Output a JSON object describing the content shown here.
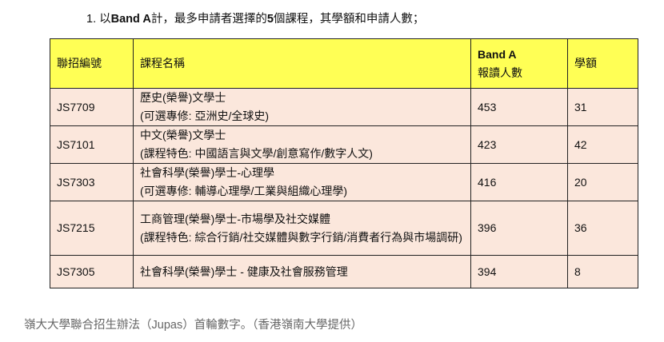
{
  "title": {
    "prefix": "1. 以",
    "bold1": "Band A",
    "mid": "計，最多申請者選擇的",
    "bold2": "5",
    "suffix": "個課程，其學額和申請人數；"
  },
  "table": {
    "headers": [
      "聯招編號",
      "課程名稱",
      "Band A",
      "報讀人數",
      "學額"
    ],
    "rows": [
      {
        "code": "JS7709",
        "name": "歷史(榮譽)文學士",
        "detail": "(可選專修: 亞洲史/全球史)",
        "applicants": "453",
        "places": "31"
      },
      {
        "code": "JS7101",
        "name": "中文(榮譽)文學士",
        "detail": "(課程特色: 中國語言與文學/創意寫作/數字人文)",
        "applicants": "423",
        "places": "42"
      },
      {
        "code": "JS7303",
        "name": "社會科學(榮譽)學士-心理學",
        "detail": "(可選專修: 輔導心理學/工業與組織心理學)",
        "applicants": "416",
        "places": "20"
      },
      {
        "code": "JS7215",
        "name": "工商管理(榮譽)學士-市場學及社交媒體",
        "detail": "(課程特色: 綜合行銷/社交媒體與數字行銷/消費者行為與市場調研)",
        "applicants": "396",
        "places": "36"
      },
      {
        "code": "JS7305",
        "name": "社會科學(榮譽)學士 - 健康及社會服務管理",
        "detail": "",
        "applicants": "394",
        "places": "8"
      }
    ]
  },
  "caption": "嶺大大學聯合招生辦法（Jupas）首輪數字。（香港嶺南大學提供）",
  "colors": {
    "header_bg": "#ffff55",
    "row_bg": "#fbe7dc"
  }
}
